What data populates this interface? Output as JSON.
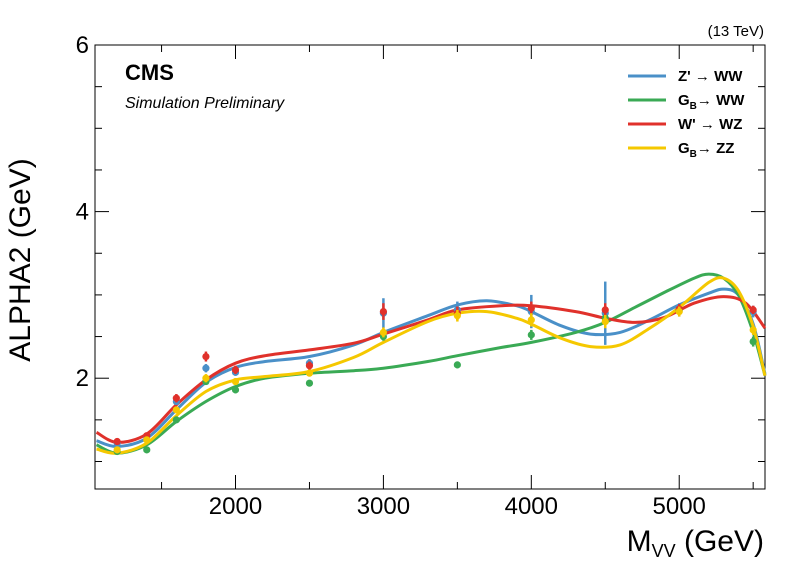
{
  "chart_data": {
    "type": "line",
    "energy_label": "(13 TeV)",
    "experiment": "CMS",
    "status": "Simulation Preliminary",
    "xlabel": "M",
    "xlabel_sub": "VV",
    "xlabel_unit": " (GeV)",
    "ylabel": "ALPHA2 (GeV)",
    "xlim": [
      1050,
      5580
    ],
    "ylim": [
      0.67,
      6.0
    ],
    "xticks": [
      2000,
      3000,
      4000,
      5000
    ],
    "yticks": [
      2,
      4,
      6
    ],
    "grid": false,
    "legend_position": "top-right",
    "series": [
      {
        "name": "Z' → WW",
        "name_parts": [
          "Z'",
          " → WW"
        ],
        "name_sub": "",
        "color": "#4a90c8",
        "points": [
          {
            "x": 1200,
            "y": 1.22,
            "err": 0.03
          },
          {
            "x": 1400,
            "y": 1.3,
            "err": 0.03
          },
          {
            "x": 1600,
            "y": 1.72,
            "err": 0.04
          },
          {
            "x": 1800,
            "y": 2.12,
            "err": 0.05
          },
          {
            "x": 2000,
            "y": 2.07,
            "err": 0.04
          },
          {
            "x": 2500,
            "y": 2.18,
            "err": 0.05
          },
          {
            "x": 3000,
            "y": 2.78,
            "err": 0.18
          },
          {
            "x": 3500,
            "y": 2.82,
            "err": 0.1
          },
          {
            "x": 4000,
            "y": 2.8,
            "err": 0.2
          },
          {
            "x": 4500,
            "y": 2.78,
            "err": 0.38
          },
          {
            "x": 5000,
            "y": 2.82,
            "err": 0.08
          },
          {
            "x": 5500,
            "y": 2.8,
            "err": 0.07
          }
        ],
        "curve": [
          [
            1060,
            1.25
          ],
          [
            1200,
            1.18
          ],
          [
            1400,
            1.28
          ],
          [
            1600,
            1.62
          ],
          [
            1800,
            1.95
          ],
          [
            2000,
            2.13
          ],
          [
            2200,
            2.2
          ],
          [
            2500,
            2.26
          ],
          [
            2800,
            2.4
          ],
          [
            3000,
            2.55
          ],
          [
            3300,
            2.75
          ],
          [
            3500,
            2.88
          ],
          [
            3700,
            2.93
          ],
          [
            3900,
            2.87
          ],
          [
            4000,
            2.8
          ],
          [
            4200,
            2.63
          ],
          [
            4400,
            2.53
          ],
          [
            4600,
            2.55
          ],
          [
            4800,
            2.7
          ],
          [
            5000,
            2.88
          ],
          [
            5200,
            3.02
          ],
          [
            5300,
            3.07
          ],
          [
            5400,
            3.0
          ],
          [
            5500,
            2.65
          ],
          [
            5580,
            2.05
          ]
        ]
      },
      {
        "name": "G_B→ WW",
        "name_parts": [
          "G",
          "→ WW"
        ],
        "name_sub": "B",
        "color": "#3aaa55",
        "points": [
          {
            "x": 1200,
            "y": 1.12,
            "err": 0.03
          },
          {
            "x": 1400,
            "y": 1.14,
            "err": 0.03
          },
          {
            "x": 1600,
            "y": 1.5,
            "err": 0.03
          },
          {
            "x": 1800,
            "y": 1.96,
            "err": 0.04
          },
          {
            "x": 2000,
            "y": 1.86,
            "err": 0.04
          },
          {
            "x": 2500,
            "y": 1.94,
            "err": 0.04
          },
          {
            "x": 3000,
            "y": 2.5,
            "err": 0.05
          },
          {
            "x": 3500,
            "y": 2.16,
            "err": 0.04
          },
          {
            "x": 4000,
            "y": 2.52,
            "err": 0.06
          },
          {
            "x": 4500,
            "y": 2.72,
            "err": 0.06
          },
          {
            "x": 5000,
            "y": 2.82,
            "err": 0.06
          },
          {
            "x": 5500,
            "y": 2.44,
            "err": 0.06
          }
        ],
        "curve": [
          [
            1060,
            1.2
          ],
          [
            1200,
            1.1
          ],
          [
            1400,
            1.2
          ],
          [
            1600,
            1.48
          ],
          [
            1800,
            1.72
          ],
          [
            2000,
            1.9
          ],
          [
            2200,
            2.0
          ],
          [
            2500,
            2.06
          ],
          [
            2800,
            2.09
          ],
          [
            3000,
            2.12
          ],
          [
            3300,
            2.2
          ],
          [
            3500,
            2.27
          ],
          [
            3800,
            2.37
          ],
          [
            4000,
            2.43
          ],
          [
            4300,
            2.55
          ],
          [
            4500,
            2.67
          ],
          [
            4700,
            2.85
          ],
          [
            4900,
            3.03
          ],
          [
            5100,
            3.2
          ],
          [
            5200,
            3.25
          ],
          [
            5300,
            3.2
          ],
          [
            5400,
            3.0
          ],
          [
            5500,
            2.55
          ],
          [
            5580,
            2.03
          ]
        ]
      },
      {
        "name": "W' → WZ",
        "name_parts": [
          "W'",
          " → WZ"
        ],
        "name_sub": "",
        "color": "#e0312b",
        "points": [
          {
            "x": 1200,
            "y": 1.24,
            "err": 0.03
          },
          {
            "x": 1400,
            "y": 1.31,
            "err": 0.03
          },
          {
            "x": 1600,
            "y": 1.76,
            "err": 0.05
          },
          {
            "x": 1800,
            "y": 2.26,
            "err": 0.06
          },
          {
            "x": 2000,
            "y": 2.1,
            "err": 0.05
          },
          {
            "x": 2500,
            "y": 2.15,
            "err": 0.05
          },
          {
            "x": 3000,
            "y": 2.8,
            "err": 0.1
          },
          {
            "x": 3500,
            "y": 2.78,
            "err": 0.08
          },
          {
            "x": 4000,
            "y": 2.84,
            "err": 0.08
          },
          {
            "x": 4500,
            "y": 2.82,
            "err": 0.08
          },
          {
            "x": 5000,
            "y": 2.83,
            "err": 0.06
          },
          {
            "x": 5500,
            "y": 2.82,
            "err": 0.05
          }
        ],
        "curve": [
          [
            1060,
            1.35
          ],
          [
            1200,
            1.23
          ],
          [
            1400,
            1.33
          ],
          [
            1600,
            1.68
          ],
          [
            1800,
            1.98
          ],
          [
            2000,
            2.18
          ],
          [
            2200,
            2.27
          ],
          [
            2500,
            2.34
          ],
          [
            2800,
            2.42
          ],
          [
            3000,
            2.53
          ],
          [
            3300,
            2.7
          ],
          [
            3500,
            2.82
          ],
          [
            3800,
            2.87
          ],
          [
            4000,
            2.87
          ],
          [
            4300,
            2.8
          ],
          [
            4500,
            2.72
          ],
          [
            4700,
            2.67
          ],
          [
            4900,
            2.73
          ],
          [
            5100,
            2.9
          ],
          [
            5300,
            2.98
          ],
          [
            5450,
            2.9
          ],
          [
            5580,
            2.6
          ]
        ]
      },
      {
        "name": "G_B→ ZZ",
        "name_parts": [
          "G",
          "→ ZZ"
        ],
        "name_sub": "B",
        "color": "#f5c800",
        "points": [
          {
            "x": 1200,
            "y": 1.14,
            "err": 0.03
          },
          {
            "x": 1400,
            "y": 1.26,
            "err": 0.03
          },
          {
            "x": 1600,
            "y": 1.62,
            "err": 0.04
          },
          {
            "x": 1800,
            "y": 2.0,
            "err": 0.05
          },
          {
            "x": 2000,
            "y": 1.96,
            "err": 0.04
          },
          {
            "x": 2500,
            "y": 2.06,
            "err": 0.04
          },
          {
            "x": 3000,
            "y": 2.55,
            "err": 0.06
          },
          {
            "x": 3500,
            "y": 2.75,
            "err": 0.07
          },
          {
            "x": 4000,
            "y": 2.7,
            "err": 0.08
          },
          {
            "x": 4500,
            "y": 2.68,
            "err": 0.08
          },
          {
            "x": 5000,
            "y": 2.8,
            "err": 0.06
          },
          {
            "x": 5500,
            "y": 2.58,
            "err": 0.06
          }
        ],
        "curve": [
          [
            1060,
            1.15
          ],
          [
            1200,
            1.1
          ],
          [
            1400,
            1.22
          ],
          [
            1600,
            1.55
          ],
          [
            1800,
            1.84
          ],
          [
            2000,
            1.98
          ],
          [
            2200,
            2.02
          ],
          [
            2500,
            2.08
          ],
          [
            2800,
            2.25
          ],
          [
            3000,
            2.43
          ],
          [
            3300,
            2.68
          ],
          [
            3500,
            2.78
          ],
          [
            3700,
            2.8
          ],
          [
            3900,
            2.72
          ],
          [
            4000,
            2.65
          ],
          [
            4200,
            2.48
          ],
          [
            4400,
            2.38
          ],
          [
            4600,
            2.4
          ],
          [
            4800,
            2.6
          ],
          [
            5000,
            2.85
          ],
          [
            5200,
            3.15
          ],
          [
            5300,
            3.2
          ],
          [
            5400,
            3.05
          ],
          [
            5500,
            2.62
          ],
          [
            5580,
            2.03
          ]
        ]
      }
    ]
  }
}
